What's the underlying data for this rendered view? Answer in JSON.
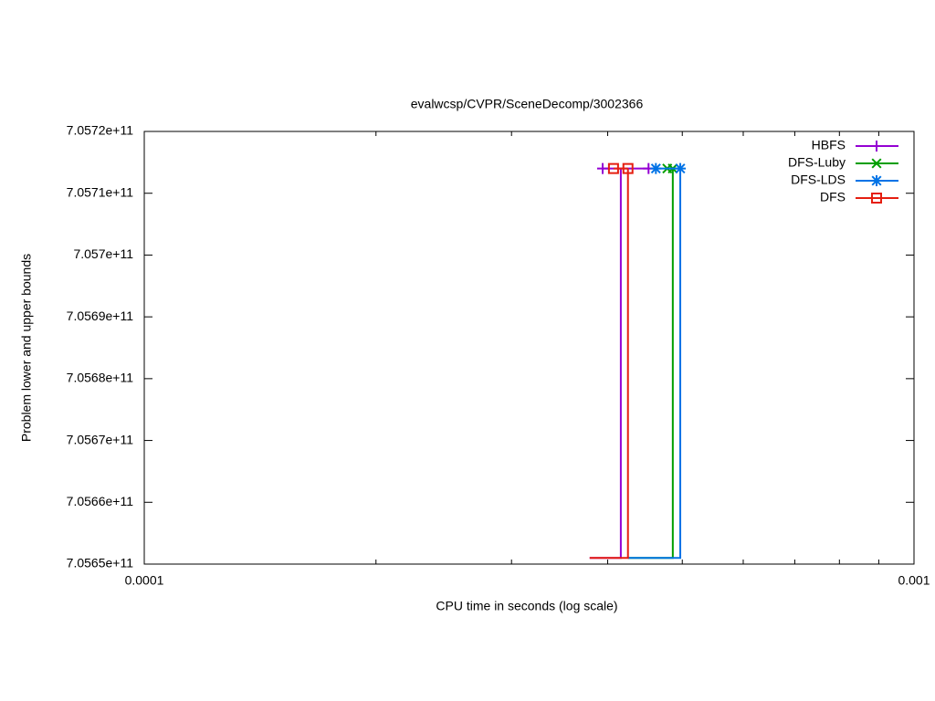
{
  "chart_data": {
    "type": "step",
    "title": "evalwcsp/CVPR/SceneDecomp/3002366",
    "x_label": "CPU time in seconds (log scale)",
    "y_label": "Problem lower and upper bounds",
    "x_log_scale": true,
    "xlim": [
      0.0001,
      0.001
    ],
    "xticks": [
      0.0001,
      0.001
    ],
    "ylim": [
      705650000000,
      705720000000
    ],
    "yticks": [
      {
        "value": 705650000000,
        "label": "7.0565e+11"
      },
      {
        "value": 705660000000,
        "label": "7.0566e+11"
      },
      {
        "value": 705670000000,
        "label": "7.0567e+11"
      },
      {
        "value": 705680000000,
        "label": "7.0568e+11"
      },
      {
        "value": 705690000000,
        "label": "7.0569e+11"
      },
      {
        "value": 705700000000,
        "label": "7.057e+11"
      },
      {
        "value": 705710000000,
        "label": "7.0571e+11"
      },
      {
        "value": 705720000000,
        "label": "7.0572e+11"
      }
    ],
    "legend_position": "top-right",
    "series": [
      {
        "name": "HBFS",
        "color": "#9400d3",
        "marker": "plus",
        "lower_x": [
          0.000379,
          0.000416,
          0.000416
        ],
        "lower_values": [
          705651000000,
          705651000000,
          705714000000
        ],
        "upper_x": [
          0.000394,
          0.000452
        ],
        "upper_values": [
          705714000000,
          705714000000
        ]
      },
      {
        "name": "DFS-Luby",
        "color": "#009e00",
        "marker": "cross",
        "lower_x": [
          0.000425,
          0.000486,
          0.000486
        ],
        "lower_values": [
          705651000000,
          705651000000,
          705714000000
        ],
        "upper_x": [
          0.000478,
          0.000486
        ],
        "upper_values": [
          705714000000,
          705714000000
        ]
      },
      {
        "name": "DFS-LDS",
        "color": "#0073e6",
        "marker": "star",
        "lower_x": [
          0.000425,
          0.000497,
          0.000497
        ],
        "lower_values": [
          705651000000,
          705651000000,
          705714000000
        ],
        "upper_x": [
          0.000462,
          0.000497
        ],
        "upper_values": [
          705714000000,
          705714000000
        ]
      },
      {
        "name": "DFS",
        "color": "#e51e10",
        "marker": "square",
        "lower_x": [
          0.000379,
          0.000425,
          0.000425
        ],
        "lower_values": [
          705651000000,
          705651000000,
          705714000000
        ],
        "upper_x": [
          0.000407,
          0.000425
        ],
        "upper_values": [
          705714000000,
          705714000000
        ]
      }
    ]
  }
}
